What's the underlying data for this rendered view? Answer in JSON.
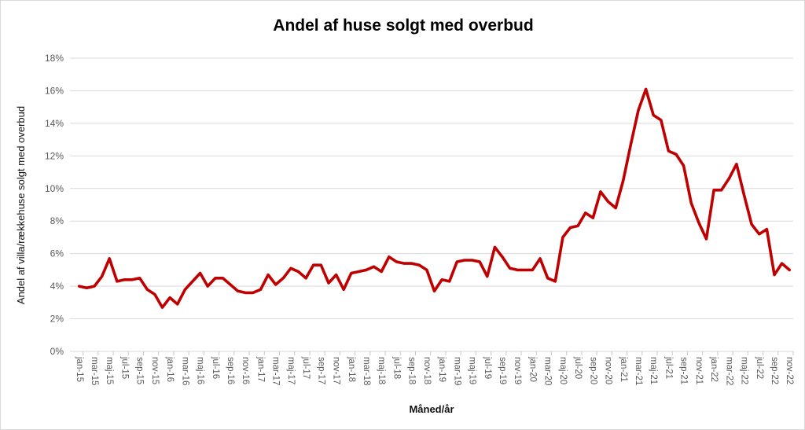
{
  "title": "Andel af huse solgt med overbud",
  "x_axis_title": "Måned/år",
  "y_axis_title": "Andel af villa/rækkehuse solgt med overbud",
  "chart_data": {
    "type": "line",
    "title": "Andel af huse solgt med overbud",
    "xlabel": "Måned/år",
    "ylabel": "Andel af villa/rækkehuse solgt med overbud",
    "ylim_percent": [
      0,
      18
    ],
    "y_tick_step_percent": 2,
    "y_tick_labels": [
      "0%",
      "2%",
      "4%",
      "6%",
      "8%",
      "10%",
      "12%",
      "14%",
      "16%",
      "18%"
    ],
    "grid": true,
    "legend": false,
    "line_color": "#C00000",
    "gridline_color": "#d9d9d9",
    "tick_color": "#c6c6c6",
    "x_tick_label_every": 2,
    "categories": [
      "jan-15",
      "feb-15",
      "mar-15",
      "apr-15",
      "maj-15",
      "jun-15",
      "jul-15",
      "aug-15",
      "sep-15",
      "okt-15",
      "nov-15",
      "dec-15",
      "jan-16",
      "feb-16",
      "mar-16",
      "apr-16",
      "maj-16",
      "jun-16",
      "jul-16",
      "aug-16",
      "sep-16",
      "okt-16",
      "nov-16",
      "dec-16",
      "jan-17",
      "feb-17",
      "mar-17",
      "apr-17",
      "maj-17",
      "jun-17",
      "jul-17",
      "aug-17",
      "sep-17",
      "okt-17",
      "nov-17",
      "dec-17",
      "jan-18",
      "feb-18",
      "mar-18",
      "apr-18",
      "maj-18",
      "jun-18",
      "jul-18",
      "aug-18",
      "sep-18",
      "okt-18",
      "nov-18",
      "dec-18",
      "jan-19",
      "feb-19",
      "mar-19",
      "apr-19",
      "maj-19",
      "jun-19",
      "jul-19",
      "aug-19",
      "sep-19",
      "okt-19",
      "nov-19",
      "dec-19",
      "jan-20",
      "feb-20",
      "mar-20",
      "apr-20",
      "maj-20",
      "jun-20",
      "jul-20",
      "aug-20",
      "sep-20",
      "okt-20",
      "nov-20",
      "dec-20",
      "jan-21",
      "feb-21",
      "mar-21",
      "apr-21",
      "maj-21",
      "jun-21",
      "jul-21",
      "aug-21",
      "sep-21",
      "okt-21",
      "nov-21",
      "dec-21",
      "jan-22",
      "feb-22",
      "mar-22",
      "apr-22",
      "maj-22",
      "jun-22",
      "jul-22",
      "aug-22",
      "sep-22",
      "okt-22",
      "nov-22"
    ],
    "values_percent": [
      4.0,
      3.9,
      4.0,
      4.6,
      5.7,
      4.3,
      4.4,
      4.4,
      4.5,
      3.8,
      3.5,
      2.7,
      3.3,
      2.9,
      3.8,
      4.3,
      4.8,
      4.0,
      4.5,
      4.5,
      4.1,
      3.7,
      3.6,
      3.6,
      3.8,
      4.7,
      4.1,
      4.5,
      5.1,
      4.9,
      4.5,
      5.3,
      5.3,
      4.2,
      4.7,
      3.8,
      4.8,
      4.9,
      5.0,
      5.2,
      4.9,
      5.8,
      5.5,
      5.4,
      5.4,
      5.3,
      5.0,
      3.7,
      4.4,
      4.3,
      5.5,
      5.6,
      5.6,
      5.5,
      4.6,
      6.4,
      5.8,
      5.1,
      5.0,
      5.0,
      5.0,
      5.7,
      4.5,
      4.3,
      7.0,
      7.6,
      7.7,
      8.5,
      8.2,
      9.8,
      9.2,
      8.8,
      10.5,
      12.7,
      14.8,
      16.1,
      14.5,
      14.2,
      12.3,
      12.1,
      11.4,
      9.1,
      7.9,
      6.9,
      9.9,
      9.9,
      10.6,
      11.5,
      9.6,
      7.8,
      7.2,
      7.5,
      4.7,
      5.4,
      5.0
    ]
  }
}
